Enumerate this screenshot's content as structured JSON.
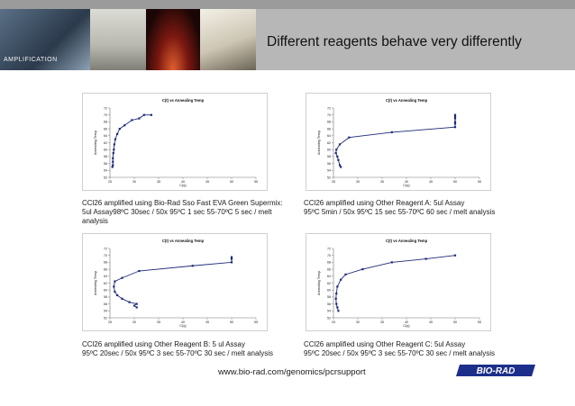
{
  "header": {
    "section_label": "AMPLIFICATION",
    "title": "Different reagents behave very differently",
    "photos": [
      "thermal-cycler-photo",
      "sample-screen-photo",
      "glowing-tubes-photo",
      "instrument-photo"
    ]
  },
  "panels": [
    {
      "caption_lines": [
        "CCl26 amplified using Bio-Rad Sso Fast EVA Green Supermix:",
        "5ul Assay98ºC 30sec / 50x 95ºC 1 sec 55-70ºC 5 sec / melt",
        "analysis"
      ]
    },
    {
      "caption_lines": [
        "CCl26 amplified using Other Reagent A:  5ul Assay",
        "95ºC 5min / 50x 95ºC 15 sec 55-70ºC 60 sec / melt analysis"
      ]
    },
    {
      "caption_lines": [
        "CCl26 amplified using Other Reagent B:  5 ul Assay",
        "95ºC 20sec / 50x 95ºC 3 sec 55-70ºC 30 sec / melt analysis"
      ]
    },
    {
      "caption_lines": [
        "CCl26 amplified using Other Reagent C: 5ul Assay",
        "95ºC 20sec / 50x 95ºC 3 sec 55-70ºC 30 sec / melt analysis"
      ]
    }
  ],
  "chart_data": [
    {
      "type": "scatter",
      "title": "C(t) vs Annealing Temp",
      "xlabel": "C(q)",
      "ylabel": "Annealing Temp",
      "xlim": [
        25,
        55
      ],
      "ylim": [
        52,
        72
      ],
      "xticks": [
        25,
        30,
        35,
        40,
        45,
        50,
        55
      ],
      "yticks": [
        52,
        54,
        56,
        58,
        60,
        62,
        64,
        66,
        68,
        70,
        72
      ],
      "color": "#1f2a7a",
      "line": true,
      "grid": false,
      "points": [
        [
          25.5,
          55
        ],
        [
          25.6,
          55.5
        ],
        [
          25.6,
          56.5
        ],
        [
          25.6,
          57.5
        ],
        [
          25.7,
          59
        ],
        [
          25.8,
          60
        ],
        [
          25.9,
          61.5
        ],
        [
          26.1,
          63
        ],
        [
          26.5,
          64.5
        ],
        [
          27.0,
          66
        ],
        [
          28.0,
          67
        ],
        [
          29.5,
          68.5
        ],
        [
          31.0,
          69
        ],
        [
          32.0,
          70
        ],
        [
          33.5,
          70
        ]
      ]
    },
    {
      "type": "scatter",
      "title": "C(t) vs Annealing Temp",
      "xlabel": "C(q)",
      "ylabel": "Annealing Temp",
      "xlim": [
        25,
        55
      ],
      "ylim": [
        52,
        72
      ],
      "xticks": [
        25,
        30,
        35,
        40,
        45,
        50,
        55
      ],
      "yticks": [
        52,
        54,
        56,
        58,
        60,
        62,
        64,
        66,
        68,
        70,
        72
      ],
      "color": "#1f2a7a",
      "line": true,
      "grid": false,
      "points": [
        [
          26.5,
          55
        ],
        [
          26.3,
          55.5
        ],
        [
          26,
          57
        ],
        [
          25.8,
          58
        ],
        [
          25.5,
          59
        ],
        [
          25.6,
          60
        ],
        [
          26.3,
          61.5
        ],
        [
          28.2,
          63.5
        ],
        [
          37,
          65
        ],
        [
          50,
          66.5
        ],
        [
          50,
          67.5
        ],
        [
          50,
          68
        ],
        [
          50,
          69
        ],
        [
          50,
          69.5
        ],
        [
          50,
          70
        ]
      ]
    },
    {
      "type": "scatter",
      "title": "C(t) vs Annealing Temp",
      "xlabel": "C(q)",
      "ylabel": "Annealing Temp",
      "xlim": [
        25,
        55
      ],
      "ylim": [
        52,
        72
      ],
      "xticks": [
        25,
        30,
        35,
        40,
        45,
        50,
        55
      ],
      "yticks": [
        52,
        54,
        56,
        58,
        60,
        62,
        64,
        66,
        68,
        70,
        72
      ],
      "color": "#1f2a7a",
      "line": true,
      "grid": false,
      "points": [
        [
          30.5,
          55
        ],
        [
          30.0,
          55.5
        ],
        [
          30.5,
          56
        ],
        [
          29.0,
          56.5
        ],
        [
          27.5,
          57.5
        ],
        [
          26.5,
          58.5
        ],
        [
          26.0,
          59.5
        ],
        [
          25.8,
          61
        ],
        [
          26.0,
          62.5
        ],
        [
          27.5,
          63.5
        ],
        [
          31.0,
          65.5
        ],
        [
          42.0,
          67
        ],
        [
          50.0,
          68
        ],
        [
          50.0,
          69
        ],
        [
          50.0,
          69.5
        ]
      ]
    },
    {
      "type": "scatter",
      "title": "C(t) vs Annealing Temp",
      "xlabel": "C(q)",
      "ylabel": "Annealing Temp",
      "xlim": [
        25,
        55
      ],
      "ylim": [
        52,
        72
      ],
      "xticks": [
        25,
        30,
        35,
        40,
        45,
        50,
        55
      ],
      "yticks": [
        52,
        54,
        56,
        58,
        60,
        62,
        64,
        66,
        68,
        70,
        72
      ],
      "color": "#1f2a7a",
      "line": true,
      "grid": false,
      "points": [
        [
          26.0,
          54
        ],
        [
          25.8,
          55
        ],
        [
          25.6,
          56
        ],
        [
          25.5,
          57.5
        ],
        [
          25.6,
          59
        ],
        [
          25.8,
          61
        ],
        [
          26.5,
          63
        ],
        [
          27.5,
          64.5
        ],
        [
          31,
          66
        ],
        [
          37,
          68
        ],
        [
          44,
          69
        ],
        [
          50,
          70
        ]
      ]
    }
  ],
  "footer": {
    "url": "www.bio-rad.com/genomics/pcrsupport",
    "logo_text": "BIO-RAD",
    "logo_color": "#1c2f8a"
  }
}
